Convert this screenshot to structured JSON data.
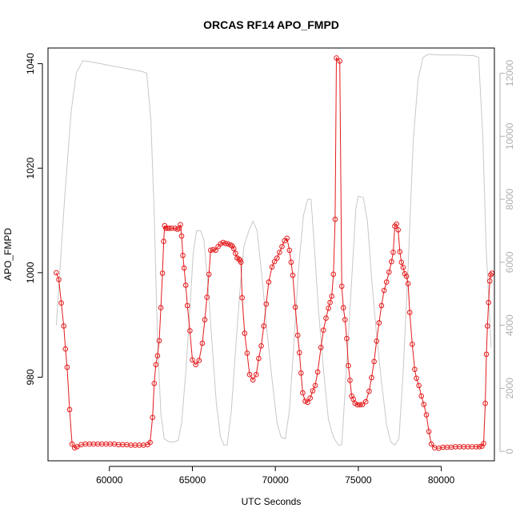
{
  "chart_data": {
    "type": "line",
    "title": "ORCAS RF14 APO_FMPD",
    "xlabel": "UTC Seconds",
    "ylabel": "APO_FMPD",
    "xlim": [
      56300,
      83200
    ],
    "ylim": [
      964,
      1043
    ],
    "y2lim": [
      -300,
      12800
    ],
    "x_ticks": [
      60000,
      65000,
      70000,
      75000,
      80000
    ],
    "y_ticks": [
      980,
      1000,
      1020,
      1040
    ],
    "y2_ticks": [
      0,
      2000,
      4000,
      6000,
      8000,
      10000,
      12000
    ],
    "grid": false,
    "series": [
      {
        "role": "primary",
        "color": "#e41a1c",
        "marker": "circle-open",
        "points": [
          [
            56800,
            1000
          ],
          [
            56950,
            998.7
          ],
          [
            57100,
            994.2
          ],
          [
            57250,
            989.8
          ],
          [
            57350,
            985.4
          ],
          [
            57450,
            981.9
          ],
          [
            57600,
            973.8
          ],
          [
            57750,
            967.2
          ],
          [
            57900,
            966.5
          ],
          [
            58050,
            966.7
          ],
          [
            58300,
            967.1
          ],
          [
            58550,
            967.2
          ],
          [
            58800,
            967.2
          ],
          [
            59050,
            967.2
          ],
          [
            59300,
            967.2
          ],
          [
            59550,
            967.2
          ],
          [
            59800,
            967.2
          ],
          [
            60050,
            967.2
          ],
          [
            60300,
            967.2
          ],
          [
            60550,
            967.1
          ],
          [
            60800,
            967.1
          ],
          [
            61050,
            967.1
          ],
          [
            61300,
            967.0
          ],
          [
            61550,
            967.0
          ],
          [
            61800,
            967.0
          ],
          [
            62050,
            967.0
          ],
          [
            62300,
            967.1
          ],
          [
            62450,
            967.5
          ],
          [
            62600,
            972.3
          ],
          [
            62700,
            978.8
          ],
          [
            62800,
            982.4
          ],
          [
            62900,
            984.1
          ],
          [
            63000,
            987.0
          ],
          [
            63100,
            993.3
          ],
          [
            63200,
            999.9
          ],
          [
            63270,
            1006.0
          ],
          [
            63330,
            1009.0
          ],
          [
            63400,
            1008.5
          ],
          [
            63500,
            1008.5
          ],
          [
            63600,
            1008.5
          ],
          [
            63750,
            1008.5
          ],
          [
            63950,
            1008.5
          ],
          [
            64100,
            1008.3
          ],
          [
            64200,
            1008.5
          ],
          [
            64280,
            1009.2
          ],
          [
            64350,
            1007.0
          ],
          [
            64430,
            1003.3
          ],
          [
            64500,
            1000.9
          ],
          [
            64600,
            997.6
          ],
          [
            64700,
            993.7
          ],
          [
            64850,
            988.9
          ],
          [
            65000,
            983.3
          ],
          [
            65200,
            982.4
          ],
          [
            65400,
            983.2
          ],
          [
            65600,
            986.5
          ],
          [
            65750,
            991.0
          ],
          [
            65880,
            995.3
          ],
          [
            66000,
            999.7
          ],
          [
            66100,
            1004.3
          ],
          [
            66250,
            1004.4
          ],
          [
            66400,
            1004.3
          ],
          [
            66550,
            1005.0
          ],
          [
            66700,
            1005.5
          ],
          [
            66850,
            1005.8
          ],
          [
            67000,
            1005.6
          ],
          [
            67150,
            1005.5
          ],
          [
            67300,
            1005.3
          ],
          [
            67400,
            1005.1
          ],
          [
            67500,
            1004.6
          ],
          [
            67600,
            1003.7
          ],
          [
            67700,
            1002.8
          ],
          [
            67800,
            1002.6
          ],
          [
            67870,
            1002.4
          ],
          [
            67930,
            1002.0
          ],
          [
            68000,
            995.2
          ],
          [
            68150,
            988.4
          ],
          [
            68300,
            984.6
          ],
          [
            68450,
            980.5
          ],
          [
            68650,
            979.5
          ],
          [
            68850,
            980.5
          ],
          [
            69000,
            983.6
          ],
          [
            69150,
            986.0
          ],
          [
            69300,
            989.8
          ],
          [
            69450,
            994.0
          ],
          [
            69600,
            998.2
          ],
          [
            69800,
            1001.1
          ],
          [
            69950,
            1002.1
          ],
          [
            70100,
            1002.8
          ],
          [
            70250,
            1003.9
          ],
          [
            70400,
            1005.0
          ],
          [
            70550,
            1006.1
          ],
          [
            70700,
            1006.6
          ],
          [
            70850,
            1004.3
          ],
          [
            70950,
            1002.0
          ],
          [
            71050,
            999.5
          ],
          [
            71200,
            993.4
          ],
          [
            71350,
            988.0
          ],
          [
            71450,
            984.7
          ],
          [
            71550,
            980.8
          ],
          [
            71650,
            977.0
          ],
          [
            71800,
            975.4
          ],
          [
            71950,
            975.2
          ],
          [
            72100,
            976.0
          ],
          [
            72250,
            977.4
          ],
          [
            72400,
            978.4
          ],
          [
            72550,
            981.0
          ],
          [
            72750,
            985.7
          ],
          [
            72900,
            989.0
          ],
          [
            73050,
            991.3
          ],
          [
            73200,
            993.2
          ],
          [
            73300,
            994.3
          ],
          [
            73400,
            995.5
          ],
          [
            73500,
            999.7
          ],
          [
            73600,
            1010.2
          ],
          [
            73680,
            1041.1
          ],
          [
            73880,
            1040.5
          ],
          [
            74000,
            997.4
          ],
          [
            74100,
            993.3
          ],
          [
            74200,
            991.0
          ],
          [
            74300,
            987.4
          ],
          [
            74400,
            982.2
          ],
          [
            74500,
            979.4
          ],
          [
            74600,
            976.4
          ],
          [
            74700,
            975.8
          ],
          [
            74800,
            975.0
          ],
          [
            74950,
            974.7
          ],
          [
            75100,
            974.7
          ],
          [
            75250,
            974.8
          ],
          [
            75450,
            975.3
          ],
          [
            75650,
            977.3
          ],
          [
            75800,
            979.9
          ],
          [
            75950,
            983.0
          ],
          [
            76100,
            986.9
          ],
          [
            76250,
            990.4
          ],
          [
            76400,
            993.7
          ],
          [
            76550,
            996.6
          ],
          [
            76700,
            998.2
          ],
          [
            76850,
            1000.1
          ],
          [
            77000,
            1002.1
          ],
          [
            77100,
            1003.9
          ],
          [
            77200,
            1008.9
          ],
          [
            77300,
            1009.3
          ],
          [
            77400,
            1008.2
          ],
          [
            77500,
            1004.0
          ],
          [
            77600,
            1002.0
          ],
          [
            77700,
            1001.0
          ],
          [
            77800,
            999.8
          ],
          [
            77900,
            999.3
          ],
          [
            78000,
            997.9
          ],
          [
            78100,
            992.4
          ],
          [
            78250,
            986.3
          ],
          [
            78400,
            981.5
          ],
          [
            78500,
            979.8
          ],
          [
            78650,
            978.4
          ],
          [
            78800,
            976.4
          ],
          [
            78950,
            974.8
          ],
          [
            79100,
            972.8
          ],
          [
            79250,
            969.6
          ],
          [
            79400,
            967.2
          ],
          [
            79600,
            966.5
          ],
          [
            79850,
            966.4
          ],
          [
            80100,
            966.6
          ],
          [
            80350,
            966.6
          ],
          [
            80600,
            966.6
          ],
          [
            80850,
            966.7
          ],
          [
            81100,
            966.7
          ],
          [
            81350,
            966.7
          ],
          [
            81600,
            966.7
          ],
          [
            81850,
            966.7
          ],
          [
            82100,
            966.7
          ],
          [
            82300,
            966.7
          ],
          [
            82450,
            966.8
          ],
          [
            82550,
            967.3
          ],
          [
            82650,
            975.0
          ],
          [
            82720,
            984.4
          ],
          [
            82780,
            989.8
          ],
          [
            82850,
            994.3
          ],
          [
            82920,
            998.4
          ],
          [
            82980,
            999.6
          ],
          [
            83050,
            999.9
          ]
        ]
      },
      {
        "role": "secondary",
        "color": "#c8c8c8",
        "marker": "none",
        "points": [
          [
            56800,
            4000
          ],
          [
            57300,
            8000
          ],
          [
            57700,
            10800
          ],
          [
            58000,
            12000
          ],
          [
            58400,
            12400
          ],
          [
            59000,
            12350
          ],
          [
            60000,
            12250
          ],
          [
            61000,
            12150
          ],
          [
            62000,
            12050
          ],
          [
            62250,
            12000
          ],
          [
            62500,
            10500
          ],
          [
            62700,
            7500
          ],
          [
            62900,
            3500
          ],
          [
            63100,
            1200
          ],
          [
            63300,
            400
          ],
          [
            63600,
            300
          ],
          [
            63900,
            300
          ],
          [
            64150,
            350
          ],
          [
            64350,
            900
          ],
          [
            64600,
            2500
          ],
          [
            64850,
            4500
          ],
          [
            65050,
            6300
          ],
          [
            65250,
            7000
          ],
          [
            65500,
            7000
          ],
          [
            65700,
            6700
          ],
          [
            65950,
            5200
          ],
          [
            66200,
            3300
          ],
          [
            66450,
            1500
          ],
          [
            66700,
            450
          ],
          [
            66900,
            200
          ],
          [
            67100,
            200
          ],
          [
            67350,
            1300
          ],
          [
            67600,
            3200
          ],
          [
            67850,
            5000
          ],
          [
            68100,
            6500
          ],
          [
            68400,
            7000
          ],
          [
            68650,
            7300
          ],
          [
            68900,
            7000
          ],
          [
            69200,
            5500
          ],
          [
            69500,
            3800
          ],
          [
            69800,
            2300
          ],
          [
            70100,
            900
          ],
          [
            70350,
            450
          ],
          [
            70600,
            400
          ],
          [
            70850,
            1300
          ],
          [
            71100,
            3300
          ],
          [
            71400,
            5800
          ],
          [
            71700,
            7500
          ],
          [
            71950,
            8000
          ],
          [
            72150,
            8000
          ],
          [
            72350,
            6500
          ],
          [
            72600,
            4500
          ],
          [
            72900,
            2600
          ],
          [
            73200,
            1000
          ],
          [
            73500,
            450
          ],
          [
            73800,
            200
          ],
          [
            74000,
            200
          ],
          [
            74250,
            2300
          ],
          [
            74550,
            5000
          ],
          [
            74850,
            7700
          ],
          [
            75000,
            8100
          ],
          [
            75300,
            8050
          ],
          [
            75550,
            7300
          ],
          [
            75800,
            5500
          ],
          [
            76100,
            3700
          ],
          [
            76400,
            2200
          ],
          [
            76700,
            850
          ],
          [
            76950,
            300
          ],
          [
            77200,
            200
          ],
          [
            77450,
            400
          ],
          [
            77700,
            2500
          ],
          [
            78000,
            5800
          ],
          [
            78300,
            9800
          ],
          [
            78600,
            11800
          ],
          [
            78900,
            12500
          ],
          [
            79200,
            12600
          ],
          [
            80000,
            12580
          ],
          [
            81000,
            12580
          ],
          [
            82000,
            12550
          ],
          [
            82250,
            12500
          ],
          [
            82500,
            10000
          ],
          [
            82700,
            6500
          ],
          [
            83000,
            3300
          ]
        ]
      }
    ]
  }
}
